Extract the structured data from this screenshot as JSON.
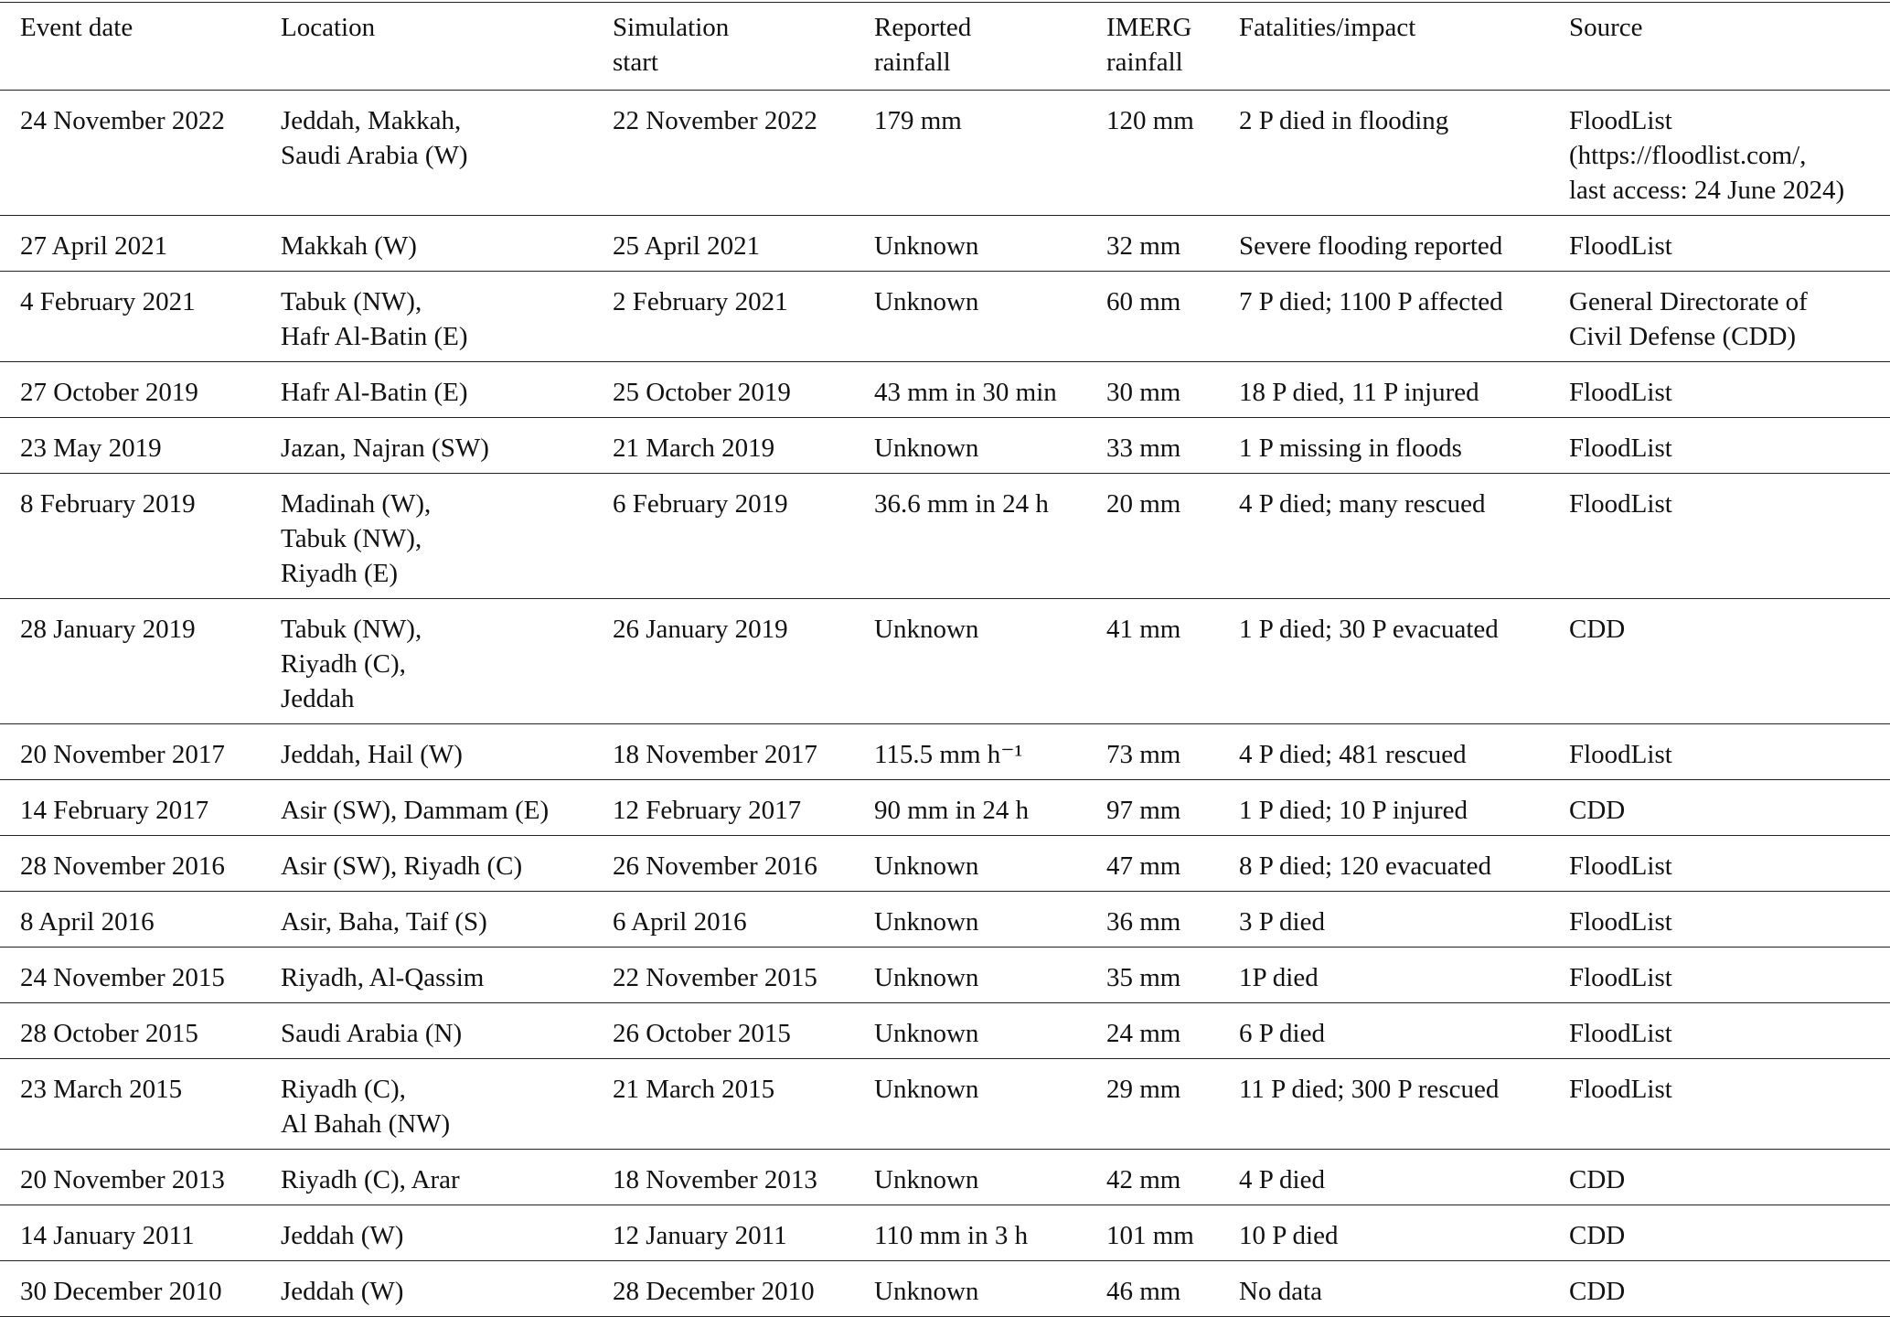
{
  "table": {
    "header": [
      [
        "Event date"
      ],
      [
        "Location"
      ],
      [
        "Simulation",
        "start"
      ],
      [
        "Reported",
        "rainfall"
      ],
      [
        "IMERG",
        "rainfall"
      ],
      [
        "Fatalities/impact"
      ],
      [
        "Source"
      ]
    ],
    "rows": [
      [
        [
          "24 November 2022"
        ],
        [
          "Jeddah, Makkah,",
          "Saudi Arabia (W)"
        ],
        [
          "22 November 2022"
        ],
        [
          "179 mm"
        ],
        [
          "120 mm"
        ],
        [
          "2 P died in flooding"
        ],
        [
          "FloodList",
          "(https://floodlist.com/,",
          "last access: 24 June 2024)"
        ]
      ],
      [
        [
          "27 April 2021"
        ],
        [
          "Makkah (W)"
        ],
        [
          "25 April 2021"
        ],
        [
          "Unknown"
        ],
        [
          "32 mm"
        ],
        [
          "Severe flooding reported"
        ],
        [
          "FloodList"
        ]
      ],
      [
        [
          "4 February 2021"
        ],
        [
          "Tabuk (NW),",
          "Hafr Al-Batin (E)"
        ],
        [
          "2 February 2021"
        ],
        [
          "Unknown"
        ],
        [
          "60 mm"
        ],
        [
          "7 P died; 1100 P affected"
        ],
        [
          "General Directorate of",
          "Civil Defense (CDD)"
        ]
      ],
      [
        [
          "27 October 2019"
        ],
        [
          "Hafr Al-Batin (E)"
        ],
        [
          "25 October 2019"
        ],
        [
          "43 mm in 30 min"
        ],
        [
          "30 mm"
        ],
        [
          "18 P died, 11 P injured"
        ],
        [
          "FloodList"
        ]
      ],
      [
        [
          "23 May 2019"
        ],
        [
          "Jazan, Najran (SW)"
        ],
        [
          "21 March 2019"
        ],
        [
          "Unknown"
        ],
        [
          "33 mm"
        ],
        [
          "1 P missing in floods"
        ],
        [
          "FloodList"
        ]
      ],
      [
        [
          "8 February 2019"
        ],
        [
          "Madinah (W),",
          "Tabuk (NW),",
          "Riyadh (E)"
        ],
        [
          "6 February 2019"
        ],
        [
          "36.6 mm in 24 h"
        ],
        [
          "20 mm"
        ],
        [
          "4 P died; many rescued"
        ],
        [
          "FloodList"
        ]
      ],
      [
        [
          "28 January 2019"
        ],
        [
          "Tabuk (NW),",
          "Riyadh (C),",
          "Jeddah"
        ],
        [
          "26 January 2019"
        ],
        [
          "Unknown"
        ],
        [
          "41 mm"
        ],
        [
          "1 P died; 30 P evacuated"
        ],
        [
          "CDD"
        ]
      ],
      [
        [
          "20 November 2017"
        ],
        [
          "Jeddah, Hail (W)"
        ],
        [
          "18 November 2017"
        ],
        [
          "115.5 mm h⁻¹"
        ],
        [
          "73 mm"
        ],
        [
          "4 P died; 481 rescued"
        ],
        [
          "FloodList"
        ]
      ],
      [
        [
          "14 February 2017"
        ],
        [
          "Asir (SW), Dammam (E)"
        ],
        [
          "12 February 2017"
        ],
        [
          "90 mm in 24 h"
        ],
        [
          "97 mm"
        ],
        [
          "1 P died; 10 P injured"
        ],
        [
          "CDD"
        ]
      ],
      [
        [
          "28 November 2016"
        ],
        [
          "Asir (SW), Riyadh (C)"
        ],
        [
          "26 November 2016"
        ],
        [
          "Unknown"
        ],
        [
          "47 mm"
        ],
        [
          "8 P died; 120 evacuated"
        ],
        [
          "FloodList"
        ]
      ],
      [
        [
          "8 April 2016"
        ],
        [
          "Asir, Baha, Taif (S)"
        ],
        [
          "6 April 2016"
        ],
        [
          "Unknown"
        ],
        [
          "36 mm"
        ],
        [
          "3 P died"
        ],
        [
          "FloodList"
        ]
      ],
      [
        [
          "24 November 2015"
        ],
        [
          "Riyadh, Al-Qassim"
        ],
        [
          "22 November 2015"
        ],
        [
          "Unknown"
        ],
        [
          "35 mm"
        ],
        [
          "1P died"
        ],
        [
          "FloodList"
        ]
      ],
      [
        [
          "28 October 2015"
        ],
        [
          "Saudi Arabia (N)"
        ],
        [
          "26 October 2015"
        ],
        [
          "Unknown"
        ],
        [
          "24 mm"
        ],
        [
          "6 P died"
        ],
        [
          "FloodList"
        ]
      ],
      [
        [
          "23 March 2015"
        ],
        [
          "Riyadh (C),",
          "Al Bahah (NW)"
        ],
        [
          "21 March 2015"
        ],
        [
          "Unknown"
        ],
        [
          "29 mm"
        ],
        [
          "11 P died; 300 P rescued"
        ],
        [
          "FloodList"
        ]
      ],
      [
        [
          "20 November 2013"
        ],
        [
          "Riyadh (C), Arar"
        ],
        [
          "18 November 2013"
        ],
        [
          "Unknown"
        ],
        [
          "42 mm"
        ],
        [
          "4 P died"
        ],
        [
          "CDD"
        ]
      ],
      [
        [
          "14 January 2011"
        ],
        [
          "Jeddah (W)"
        ],
        [
          "12 January 2011"
        ],
        [
          "110 mm in 3 h"
        ],
        [
          "101 mm"
        ],
        [
          "10 P died"
        ],
        [
          "CDD"
        ]
      ],
      [
        [
          "30 December 2010"
        ],
        [
          "Jeddah (W)"
        ],
        [
          "28 December 2010"
        ],
        [
          "Unknown"
        ],
        [
          "46 mm"
        ],
        [
          "No data"
        ],
        [
          "CDD"
        ]
      ]
    ]
  }
}
